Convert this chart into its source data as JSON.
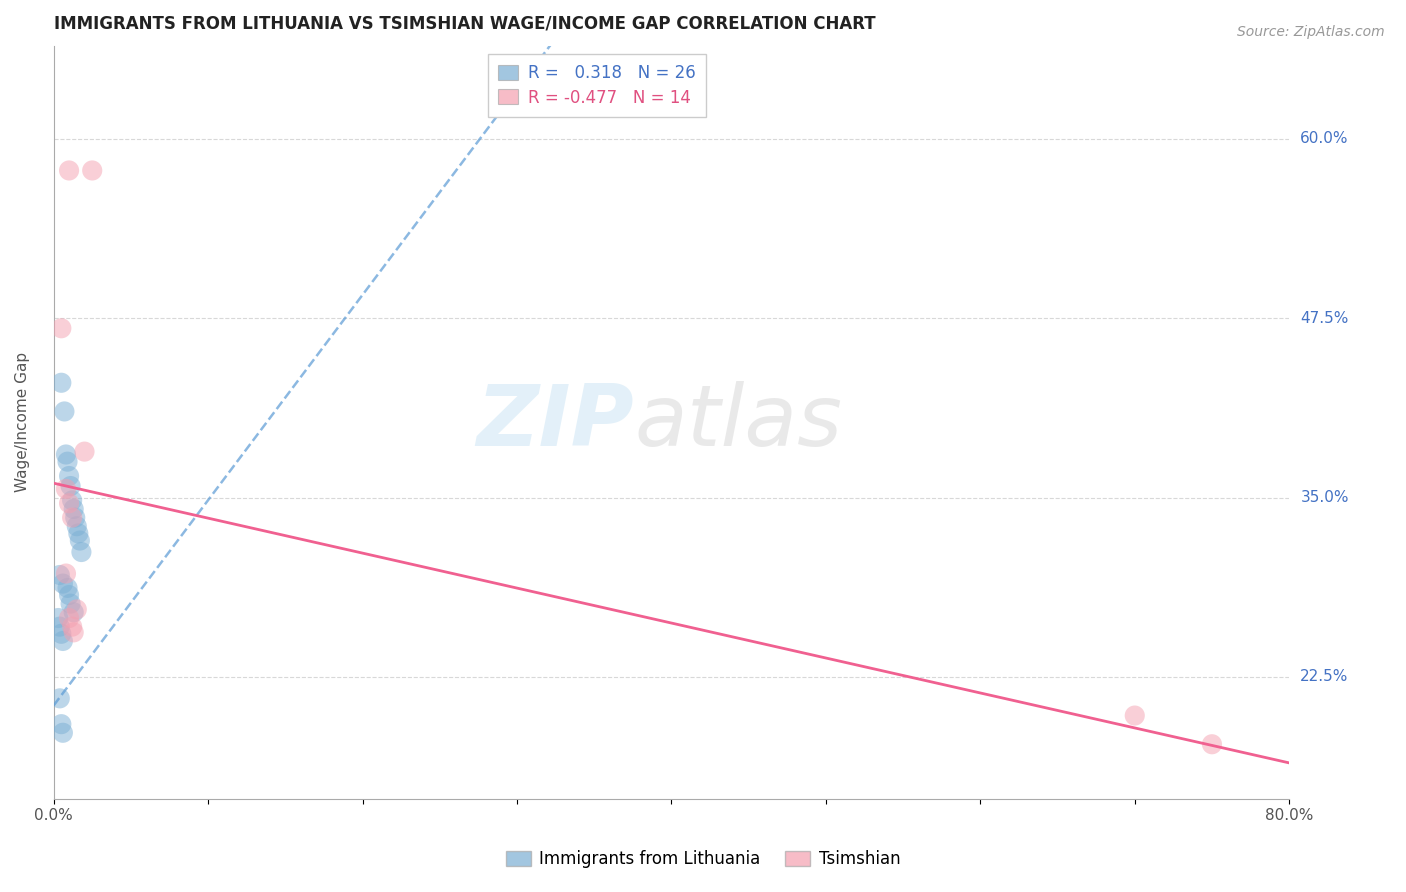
{
  "title": "IMMIGRANTS FROM LITHUANIA VS TSIMSHIAN WAGE/INCOME GAP CORRELATION CHART",
  "source": "Source: ZipAtlas.com",
  "ylabel": "Wage/Income Gap",
  "ytick_labels": [
    "22.5%",
    "35.0%",
    "47.5%",
    "60.0%"
  ],
  "ytick_values": [
    0.225,
    0.35,
    0.475,
    0.6
  ],
  "xlim": [
    0.0,
    0.8
  ],
  "ylim": [
    0.14,
    0.665
  ],
  "blue_scatter": [
    [
      0.005,
      0.43
    ],
    [
      0.007,
      0.41
    ],
    [
      0.008,
      0.38
    ],
    [
      0.009,
      0.375
    ],
    [
      0.01,
      0.365
    ],
    [
      0.011,
      0.358
    ],
    [
      0.012,
      0.348
    ],
    [
      0.013,
      0.342
    ],
    [
      0.014,
      0.336
    ],
    [
      0.015,
      0.33
    ],
    [
      0.016,
      0.325
    ],
    [
      0.017,
      0.32
    ],
    [
      0.018,
      0.312
    ],
    [
      0.004,
      0.296
    ],
    [
      0.006,
      0.29
    ],
    [
      0.009,
      0.287
    ],
    [
      0.01,
      0.282
    ],
    [
      0.011,
      0.276
    ],
    [
      0.013,
      0.27
    ],
    [
      0.003,
      0.266
    ],
    [
      0.004,
      0.26
    ],
    [
      0.005,
      0.255
    ],
    [
      0.006,
      0.25
    ],
    [
      0.004,
      0.21
    ],
    [
      0.005,
      0.192
    ],
    [
      0.006,
      0.186
    ]
  ],
  "pink_scatter": [
    [
      0.01,
      0.578
    ],
    [
      0.025,
      0.578
    ],
    [
      0.005,
      0.468
    ],
    [
      0.02,
      0.382
    ],
    [
      0.008,
      0.356
    ],
    [
      0.01,
      0.346
    ],
    [
      0.012,
      0.336
    ],
    [
      0.008,
      0.297
    ],
    [
      0.015,
      0.272
    ],
    [
      0.01,
      0.266
    ],
    [
      0.012,
      0.26
    ],
    [
      0.013,
      0.256
    ],
    [
      0.7,
      0.198
    ],
    [
      0.75,
      0.178
    ]
  ],
  "blue_line_x": [
    0.0,
    0.8
  ],
  "blue_line_y": [
    0.205,
    1.35
  ],
  "pink_line_x": [
    0.0,
    0.8
  ],
  "pink_line_y": [
    0.36,
    0.165
  ],
  "blue_color": "#7bafd4",
  "pink_color": "#f4a0b0",
  "blue_line_color": "#5b9bd5",
  "pink_line_color": "#f06090",
  "legend_r_blue": "0.318",
  "legend_n_blue": "26",
  "legend_r_pink": "-0.477",
  "legend_n_pink": "14",
  "background_color": "#ffffff",
  "grid_color": "#d8d8d8"
}
